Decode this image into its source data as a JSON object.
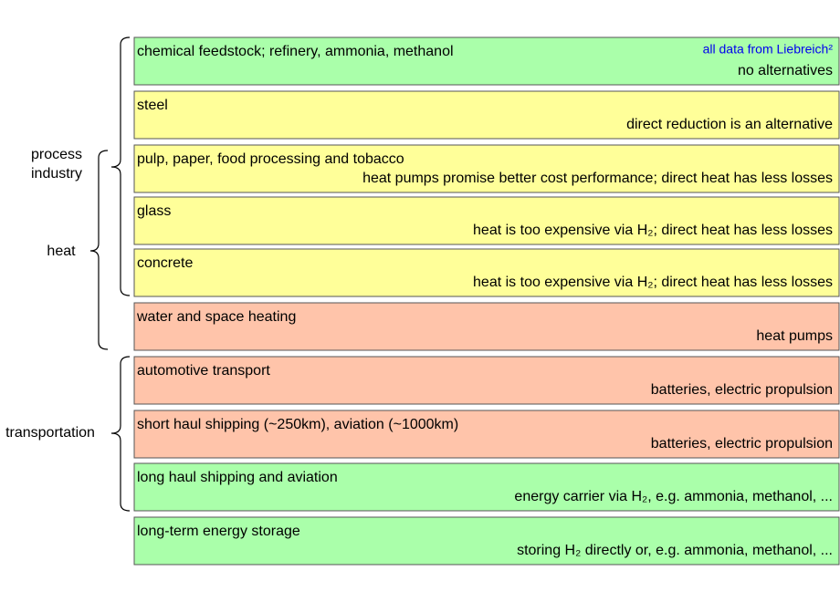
{
  "note": "all data from Liebreich²",
  "groups": [
    {
      "label": [
        "process",
        "industry"
      ]
    },
    {
      "label": [
        "heat"
      ]
    },
    {
      "label": [
        "transportation"
      ]
    }
  ],
  "rows": [
    {
      "title": "chemical feedstock; refinery, ammonia, methanol",
      "comment": "no alternatives",
      "color": "#aaffaa"
    },
    {
      "title": "steel",
      "comment": "direct reduction is an alternative",
      "color": "#ffff99"
    },
    {
      "title": "pulp, paper, food processing and tobacco",
      "comment": "heat pumps promise better cost performance; direct heat has less losses",
      "color": "#ffff99"
    },
    {
      "title": "glass",
      "comment": "heat is too expensive via H₂; direct heat has less losses",
      "color": "#ffff99"
    },
    {
      "title": "concrete",
      "comment": "heat is too expensive via H₂; direct heat has less losses",
      "color": "#ffff99"
    },
    {
      "title": "water and space heating",
      "comment": "heat pumps",
      "color": "#ffc4aa"
    },
    {
      "title": "automotive transport",
      "comment": "batteries, electric propulsion",
      "color": "#ffc4aa"
    },
    {
      "title": "short haul shipping (~250km), aviation (~1000km)",
      "comment": "batteries, electric propulsion",
      "color": "#ffc4aa"
    },
    {
      "title": "long haul shipping and aviation",
      "comment": "energy carrier via H₂, e.g. ammonia, methanol, ...",
      "color": "#aaffaa"
    },
    {
      "title": "long-term energy storage",
      "comment": "storing  H₂ directly or, e.g. ammonia, methanol, ...",
      "color": "#aaffaa"
    }
  ]
}
